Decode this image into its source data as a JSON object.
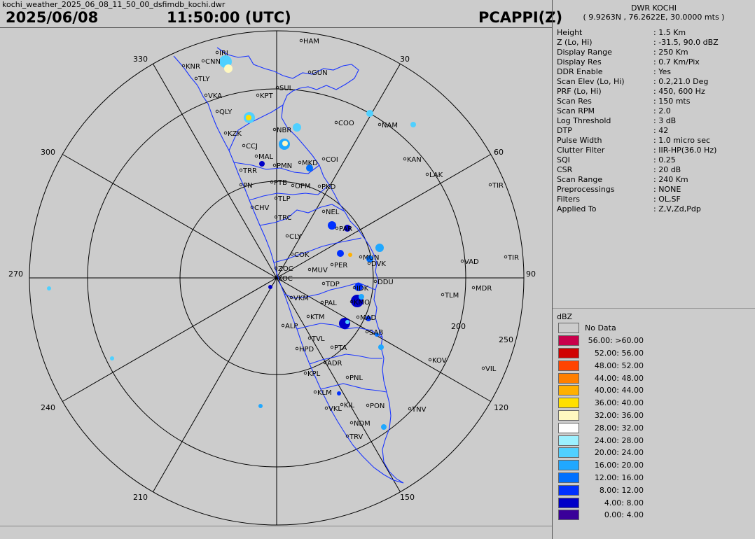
{
  "header": {
    "filename": "kochi_weather_2025_06_08_11_50_00_dsfimdb_kochi.dwr",
    "date": "2025/06/08",
    "time": "11:50:00 (UTC)",
    "product": "PCAPPI(Z)"
  },
  "station": {
    "name": "DWR KOCHI",
    "location": "( 9.9263N , 76.2622E, 30.0000 mts )"
  },
  "params": [
    {
      "name": "Height",
      "value": ": 1.5 Km"
    },
    {
      "name": "Z (Lo, Hi)",
      "value": ": -31.5, 90.0 dBZ"
    },
    {
      "name": "Display Range",
      "value": ": 250 Km"
    },
    {
      "name": "Display Res",
      "value": ": 0.7 Km/Pix"
    },
    {
      "name": "DDR Enable",
      "value": ": Yes"
    },
    {
      "name": "Scan Elev (Lo, Hi)",
      "value": ": 0.2,21.0 Deg"
    },
    {
      "name": "PRF (Lo, Hi)",
      "value": ": 450, 600 Hz"
    },
    {
      "name": "Scan Res",
      "value": ": 150 mts"
    },
    {
      "name": "Scan RPM",
      "value": ": 2.0"
    },
    {
      "name": "Log Threshold",
      "value": ": 3 dB"
    },
    {
      "name": "DTP",
      "value": ": 42"
    },
    {
      "name": "Pulse Width",
      "value": ": 1.0 micro sec"
    },
    {
      "name": "Clutter Filter",
      "value": ": IIR-HP(36.0 Hz)"
    },
    {
      "name": "SQI",
      "value": ": 0.25"
    },
    {
      "name": "CSR",
      "value": ": 20 dB"
    },
    {
      "name": "Scan Range",
      "value": ": 240 Km"
    },
    {
      "name": "Preprocessings",
      "value": ": NONE"
    },
    {
      "name": "Filters",
      "value": ": OL,SF"
    },
    {
      "name": "Applied To",
      "value": ": Z,V,Zd,Pdp"
    }
  ],
  "legend": {
    "title": "dBZ",
    "items": [
      {
        "label": "No Data",
        "color": "#cccccc"
      },
      {
        "label": "56.00: >60.00",
        "color": "#c8004b"
      },
      {
        "label": "52.00: 56.00",
        "color": "#d00000"
      },
      {
        "label": "48.00: 52.00",
        "color": "#ff4400"
      },
      {
        "label": "44.00: 48.00",
        "color": "#ff7f00"
      },
      {
        "label": "40.00: 44.00",
        "color": "#ffb000"
      },
      {
        "label": "36.00: 40.00",
        "color": "#ffe000"
      },
      {
        "label": "32.00: 36.00",
        "color": "#fff8c0"
      },
      {
        "label": "28.00: 32.00",
        "color": "#ffffff"
      },
      {
        "label": "24.00: 28.00",
        "color": "#9cf0ff"
      },
      {
        "label": "20.00: 24.00",
        "color": "#50d0ff"
      },
      {
        "label": "16.00: 20.00",
        "color": "#20a8ff"
      },
      {
        "label": "12.00: 16.00",
        "color": "#0070ff"
      },
      {
        "label": "8.00: 12.00",
        "color": "#0030ff"
      },
      {
        "label": "4.00: 8.00",
        "color": "#0000c8"
      },
      {
        "label": "0.00: 4.00",
        "color": "#3a0099"
      }
    ]
  },
  "ppi": {
    "bearing_labels": [
      "30",
      "60",
      "90",
      "120",
      "150",
      "210",
      "240",
      "270",
      "300",
      "330",
      "200",
      "250"
    ],
    "places": [
      "HAM",
      "IRI",
      "CNN",
      "KNR",
      "GUN",
      "TLY",
      "SUL",
      "KPT",
      "VKA",
      "QLY",
      "COO",
      "NAM",
      "NBR",
      "KZK",
      "CCJ",
      "MAL",
      "MKD",
      "COI",
      "PMN",
      "KAN",
      "TRR",
      "LAK",
      "PN",
      "PTB",
      "OPM",
      "PKD",
      "TIR",
      "CHV",
      "TLP",
      "NEL",
      "TRC",
      "PAR",
      "CLY",
      "COK",
      "MUN",
      "VAD",
      "TIR",
      "ZOC",
      "MUV",
      "PER",
      "DVK",
      "KOC",
      "DDU",
      "TDP",
      "IDK",
      "MDR",
      "TLM",
      "VKM",
      "PAL",
      "KMO",
      "KTM",
      "MAD",
      "ALP",
      "SAB",
      "TVL",
      "HPD",
      "PTA",
      "KOV",
      "ADR",
      "VIL",
      "KPL",
      "PNL",
      "KLM",
      "KIL",
      "PON",
      "VKL",
      "TNV",
      "NDM",
      "TRV"
    ],
    "colors": {
      "background": "#cccccc",
      "rings": "#000000",
      "coast": "#1a35ff"
    }
  }
}
